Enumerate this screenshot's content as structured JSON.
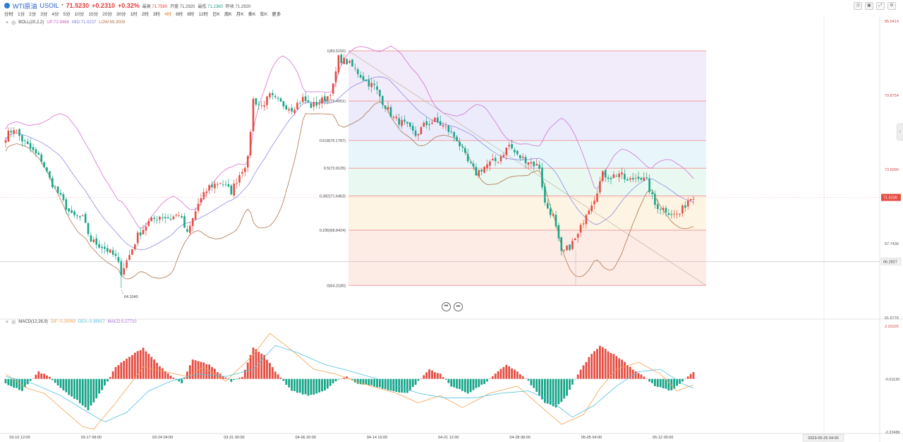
{
  "header": {
    "logo_icon": "wti-oil-logo-icon",
    "name": "WTI原油",
    "symbol": "USOIL",
    "price": "71.5230",
    "change": "+0.2310",
    "change_pct": "+0.32%",
    "stats": [
      {
        "label": "最高",
        "value": "71.7590",
        "tone": "r"
      },
      {
        "label": "开盘",
        "value": "71.2920",
        "tone": ""
      },
      {
        "label": "最低",
        "value": "71.2360",
        "tone": "g"
      },
      {
        "label": "昨收",
        "value": "71.2920",
        "tone": ""
      }
    ],
    "timeframes": [
      "分时",
      "1分",
      "2分",
      "3分",
      "4分",
      "5分",
      "10分",
      "15分",
      "20分",
      "30分",
      "1时",
      "2时",
      "3时",
      "4时",
      "6时",
      "8时",
      "12时",
      "日K",
      "周K",
      "月K",
      "季K",
      "年K",
      "更多"
    ],
    "active_timeframe": "4时",
    "tools": [
      "clock-icon",
      "camera-icon",
      "fullscreen-icon",
      "settings-icon"
    ]
  },
  "boll_label": {
    "name": "BOLL(20,2,2)",
    "up": "UP:72.9466",
    "mid": "MID:71.0237",
    "low": "LOW:69.3009"
  },
  "macd_label": {
    "name": "MACD(12,26,9)",
    "dif": "DIF:-0.25063",
    "dea": "DEA:-0.38917",
    "macd": "MACD:0.27710"
  },
  "colors": {
    "up": "#e54d42",
    "down": "#18a589",
    "upper": "#d46fd1",
    "mid": "#8c8ce6",
    "lower": "#b0744c",
    "dif": "#f2a050",
    "dea": "#4fc0e0",
    "last": "#e54d42"
  },
  "nav_icons": [
    "skip-back-icon",
    "skip-forward-icon"
  ],
  "chart_data": {
    "type": "candlestick",
    "price_axis": {
      "ticks": [
        "85.9414",
        "79.8754",
        "73.8095",
        "67.7436",
        "61.6776"
      ],
      "ylim": [
        61.6776,
        85.9414
      ]
    },
    "last_price_label": "71.5230",
    "crosshair_label": "66.2827",
    "crosshair_time_label": "2023-05-25 04:00",
    "low_annotation": "64.1040",
    "time_labels": [
      "03-10 12:00",
      "03-17 08:00",
      "03-24 04:00",
      "03-31 00:00",
      "04-06 20:00",
      "04-14 16:00",
      "04-21 12:00",
      "04-28 08:00",
      "05-05 04:00",
      "05-12 00:00"
    ],
    "fib_levels": [
      {
        "label": "1(83.5150)",
        "value": 83.515
      },
      {
        "label": "0.786(79.4051)",
        "value": 79.4051
      },
      {
        "label": "0.618(76.1787)",
        "value": 76.1787
      },
      {
        "label": "0.5(73.9125)",
        "value": 73.9125
      },
      {
        "label": "0.382(71.6463)",
        "value": 71.6463
      },
      {
        "label": "0.236(68.8424)",
        "value": 68.8424
      },
      {
        "label": "0(64.3180)",
        "value": 64.318
      }
    ],
    "macd_axis": {
      "ticks": [
        "2.20226",
        "-0.01130",
        "-2.22486"
      ],
      "ylim": [
        -2.22486,
        2.20226
      ]
    },
    "price_keyframes": [
      [
        0,
        76.5
      ],
      [
        3,
        77.2
      ],
      [
        6,
        76.2
      ],
      [
        9,
        75.5
      ],
      [
        13,
        74.6
      ],
      [
        16,
        73.0
      ],
      [
        20,
        71.5
      ],
      [
        24,
        70.0
      ],
      [
        28,
        69.8
      ],
      [
        31,
        68.0
      ],
      [
        35,
        67.5
      ],
      [
        37,
        67.2
      ],
      [
        40,
        66.6
      ],
      [
        42,
        65.4
      ],
      [
        45,
        66.8
      ],
      [
        48,
        68.4
      ],
      [
        52,
        69.5
      ],
      [
        56,
        70.0
      ],
      [
        60,
        69.8
      ],
      [
        63,
        70.2
      ],
      [
        66,
        68.5
      ],
      [
        70,
        71.0
      ],
      [
        74,
        72.4
      ],
      [
        78,
        72.8
      ],
      [
        82,
        72.0
      ],
      [
        85,
        73.4
      ],
      [
        88,
        74.6
      ],
      [
        90,
        79.5
      ],
      [
        93,
        79.0
      ],
      [
        96,
        79.8
      ],
      [
        100,
        79.2
      ],
      [
        104,
        78.8
      ],
      [
        108,
        79.6
      ],
      [
        111,
        79.0
      ],
      [
        114,
        79.3
      ],
      [
        117,
        79.8
      ],
      [
        119,
        80.6
      ],
      [
        121,
        82.9
      ],
      [
        124,
        82.6
      ],
      [
        127,
        82.0
      ],
      [
        131,
        81.0
      ],
      [
        134,
        80.6
      ],
      [
        138,
        79.0
      ],
      [
        141,
        78.0
      ],
      [
        145,
        77.5
      ],
      [
        149,
        76.6
      ],
      [
        152,
        77.4
      ],
      [
        156,
        77.8
      ],
      [
        160,
        77.2
      ],
      [
        164,
        76.3
      ],
      [
        168,
        74.4
      ],
      [
        171,
        73.5
      ],
      [
        175,
        74.2
      ],
      [
        179,
        74.6
      ],
      [
        183,
        75.8
      ],
      [
        186,
        74.9
      ],
      [
        190,
        74.5
      ],
      [
        194,
        74.0
      ],
      [
        196,
        71.0
      ],
      [
        199,
        70.0
      ],
      [
        202,
        66.9
      ],
      [
        205,
        67.5
      ],
      [
        208,
        68.4
      ],
      [
        211,
        70.3
      ],
      [
        214,
        71.5
      ],
      [
        217,
        73.4
      ],
      [
        220,
        73.2
      ],
      [
        223,
        73.5
      ],
      [
        226,
        72.8
      ],
      [
        230,
        73.3
      ],
      [
        233,
        72.8
      ],
      [
        236,
        70.9
      ],
      [
        240,
        70.5
      ],
      [
        243,
        70.1
      ],
      [
        245,
        70.2
      ],
      [
        248,
        71.3
      ],
      [
        250,
        71.7
      ]
    ],
    "macd_keyframes": [
      [
        0,
        -0.2
      ],
      [
        6,
        -0.5
      ],
      [
        12,
        0.3
      ],
      [
        16,
        0.1
      ],
      [
        20,
        -0.4
      ],
      [
        26,
        -0.9
      ],
      [
        30,
        -1.3
      ],
      [
        36,
        -0.3
      ],
      [
        40,
        0.5
      ],
      [
        46,
        1.0
      ],
      [
        50,
        1.3
      ],
      [
        54,
        0.8
      ],
      [
        58,
        0.3
      ],
      [
        64,
        -0.2
      ],
      [
        68,
        0.8
      ],
      [
        74,
        0.6
      ],
      [
        78,
        0.2
      ],
      [
        82,
        -0.1
      ],
      [
        86,
        0.1
      ],
      [
        90,
        1.3
      ],
      [
        94,
        1.0
      ],
      [
        98,
        0.3
      ],
      [
        104,
        -0.5
      ],
      [
        110,
        -0.7
      ],
      [
        116,
        -0.5
      ],
      [
        120,
        -0.1
      ],
      [
        124,
        0.1
      ],
      [
        128,
        -0.2
      ],
      [
        134,
        -0.3
      ],
      [
        140,
        -0.5
      ],
      [
        146,
        -0.6
      ],
      [
        150,
        -0.1
      ],
      [
        154,
        0.4
      ],
      [
        158,
        0.2
      ],
      [
        162,
        -0.3
      ],
      [
        168,
        -0.6
      ],
      [
        174,
        -0.2
      ],
      [
        178,
        0.2
      ],
      [
        182,
        0.6
      ],
      [
        186,
        0.3
      ],
      [
        190,
        -0.1
      ],
      [
        196,
        -1.0
      ],
      [
        200,
        -1.2
      ],
      [
        204,
        -0.7
      ],
      [
        208,
        0.2
      ],
      [
        212,
        0.9
      ],
      [
        216,
        1.4
      ],
      [
        220,
        1.1
      ],
      [
        224,
        0.8
      ],
      [
        228,
        0.4
      ],
      [
        232,
        0.1
      ],
      [
        236,
        -0.3
      ],
      [
        242,
        -0.5
      ],
      [
        246,
        -0.1
      ],
      [
        250,
        0.3
      ]
    ],
    "dif_keyframes": [
      [
        0,
        0.2
      ],
      [
        8,
        -0.4
      ],
      [
        14,
        -0.6
      ],
      [
        20,
        -1.2
      ],
      [
        28,
        -2.0
      ],
      [
        32,
        -2.1
      ],
      [
        40,
        -1.0
      ],
      [
        50,
        0.5
      ],
      [
        58,
        0.3
      ],
      [
        66,
        0.1
      ],
      [
        72,
        0.5
      ],
      [
        80,
        -0.1
      ],
      [
        90,
        1.0
      ],
      [
        96,
        1.9
      ],
      [
        104,
        1.2
      ],
      [
        112,
        0.4
      ],
      [
        120,
        0.2
      ],
      [
        130,
        -0.2
      ],
      [
        142,
        -0.6
      ],
      [
        150,
        -1.0
      ],
      [
        158,
        -0.7
      ],
      [
        166,
        -1.2
      ],
      [
        176,
        -0.6
      ],
      [
        186,
        -0.3
      ],
      [
        196,
        -1.3
      ],
      [
        202,
        -1.9
      ],
      [
        210,
        -1.5
      ],
      [
        216,
        -0.4
      ],
      [
        222,
        0.4
      ],
      [
        230,
        0.7
      ],
      [
        238,
        0.2
      ],
      [
        244,
        -0.5
      ],
      [
        250,
        -0.25
      ]
    ],
    "dea_keyframes": [
      [
        0,
        0.1
      ],
      [
        10,
        -0.2
      ],
      [
        20,
        -0.7
      ],
      [
        30,
        -1.4
      ],
      [
        36,
        -1.8
      ],
      [
        44,
        -1.4
      ],
      [
        52,
        -0.5
      ],
      [
        60,
        -0.1
      ],
      [
        70,
        0.2
      ],
      [
        80,
        0.1
      ],
      [
        90,
        0.4
      ],
      [
        98,
        1.4
      ],
      [
        106,
        1.1
      ],
      [
        116,
        0.6
      ],
      [
        126,
        0.3
      ],
      [
        138,
        -0.1
      ],
      [
        150,
        -0.6
      ],
      [
        160,
        -0.8
      ],
      [
        170,
        -0.8
      ],
      [
        180,
        -0.6
      ],
      [
        190,
        -0.5
      ],
      [
        198,
        -0.9
      ],
      [
        206,
        -1.6
      ],
      [
        214,
        -1.1
      ],
      [
        222,
        -0.3
      ],
      [
        230,
        0.3
      ],
      [
        238,
        0.4
      ],
      [
        246,
        -0.2
      ],
      [
        250,
        -0.39
      ]
    ]
  }
}
